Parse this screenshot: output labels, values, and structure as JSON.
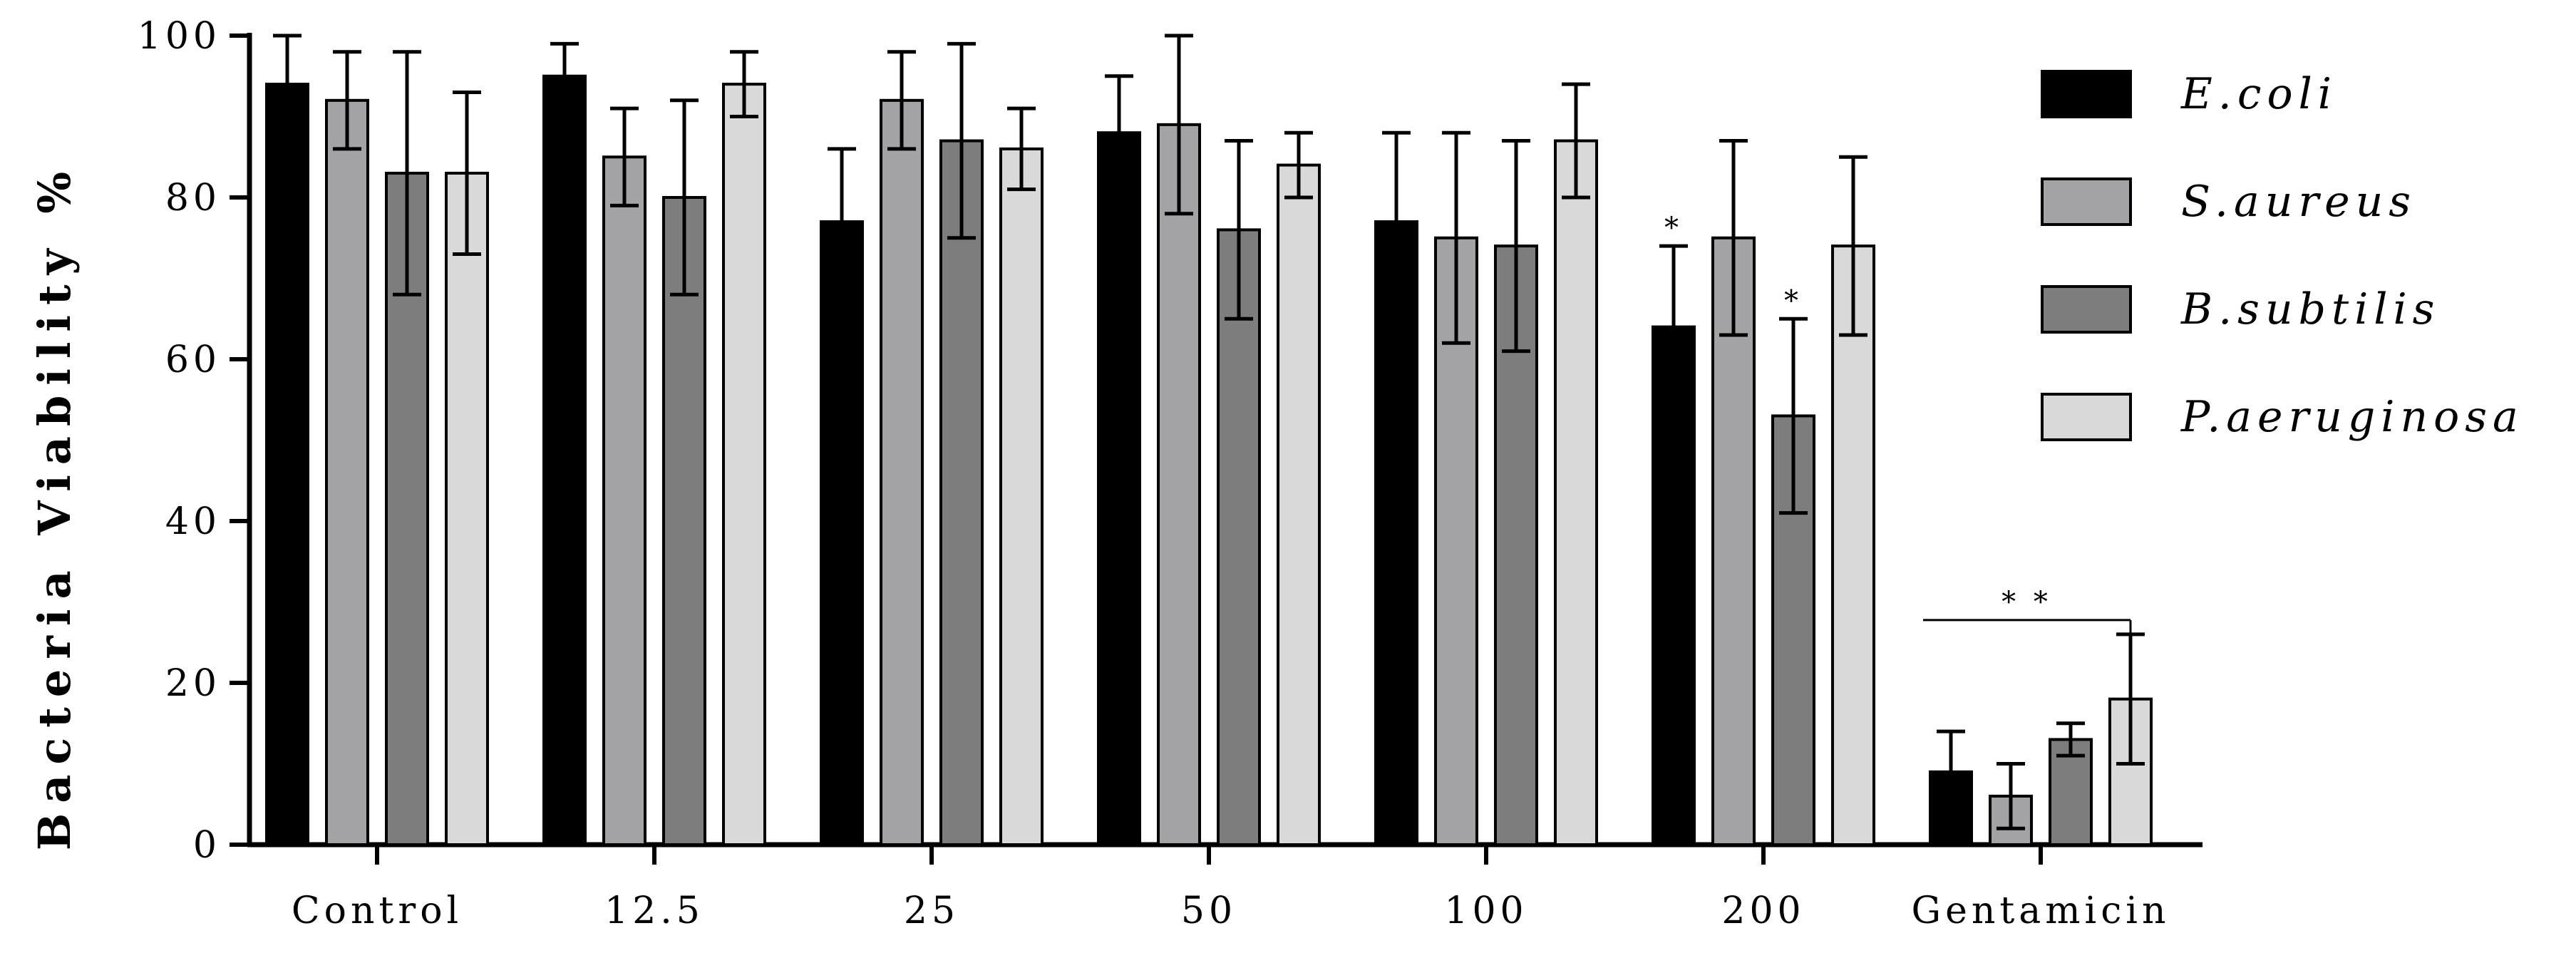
{
  "chart_data": {
    "type": "bar",
    "title": "",
    "xlabel": "",
    "ylabel": "Bacteria Viability %",
    "ylim": [
      0,
      100
    ],
    "yticks": [
      "0",
      "20",
      "40",
      "60",
      "80",
      "100"
    ],
    "categories": [
      "Control",
      "12.5",
      "25",
      "50",
      "100",
      "200",
      "Gentamicin"
    ],
    "series": [
      {
        "name": "E.coli",
        "color": "#000000",
        "values": [
          94,
          95,
          77,
          88,
          77,
          64,
          9
        ],
        "errors": [
          6,
          4,
          9,
          7,
          11,
          10,
          5
        ]
      },
      {
        "name": "S.aureus",
        "color": "#a3a3a6",
        "values": [
          92,
          85,
          92,
          89,
          75,
          75,
          6
        ],
        "errors": [
          6,
          6,
          6,
          11,
          13,
          12,
          4
        ]
      },
      {
        "name": "B.subtilis",
        "color": "#7d7d7d",
        "values": [
          83,
          80,
          87,
          76,
          74,
          53,
          13
        ],
        "errors": [
          15,
          12,
          12,
          11,
          13,
          12,
          2
        ]
      },
      {
        "name": "P.aeruginosa",
        "color": "#d9d9d9",
        "values": [
          83,
          94,
          86,
          84,
          87,
          74,
          18
        ],
        "errors": [
          10,
          4,
          5,
          4,
          7,
          11,
          8
        ]
      }
    ],
    "significance": [
      {
        "text": "*",
        "category": "200",
        "series": "E.coli"
      },
      {
        "text": "*",
        "category": "200",
        "series": "B.subtilis"
      },
      {
        "text": "* *",
        "category": "Gentamicin",
        "group": true
      }
    ],
    "legend_position": "right",
    "grid": false
  }
}
